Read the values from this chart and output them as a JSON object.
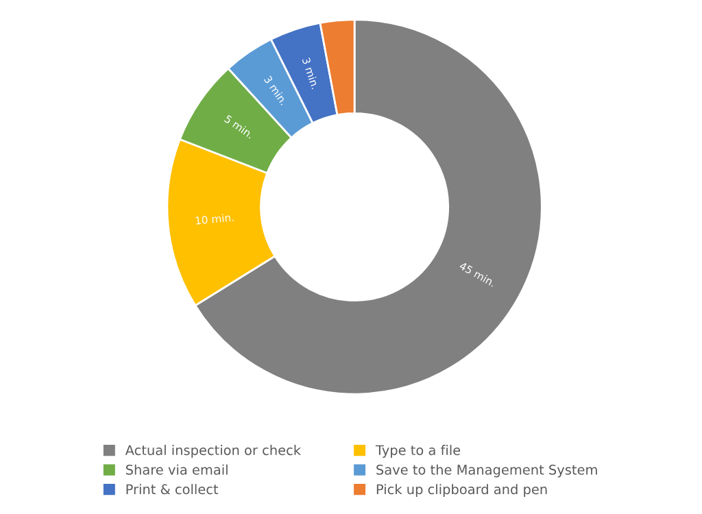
{
  "chart_data": {
    "type": "donut",
    "categories": [
      "Actual inspection or check",
      "Type to a file",
      "Share via email",
      "Save to the Management System",
      "Print & collect",
      "Pick up clipboard and pen"
    ],
    "values": [
      45,
      10,
      5,
      3,
      3,
      2
    ],
    "colors": [
      "#808080",
      "#ffc000",
      "#70ad47",
      "#5b9bd5",
      "#4472c4",
      "#ed7d31"
    ],
    "value_labels": [
      "45 min.",
      "10 min.",
      "5 min.",
      "3 min.",
      "3 min.",
      null
    ],
    "legend": "bottom"
  }
}
